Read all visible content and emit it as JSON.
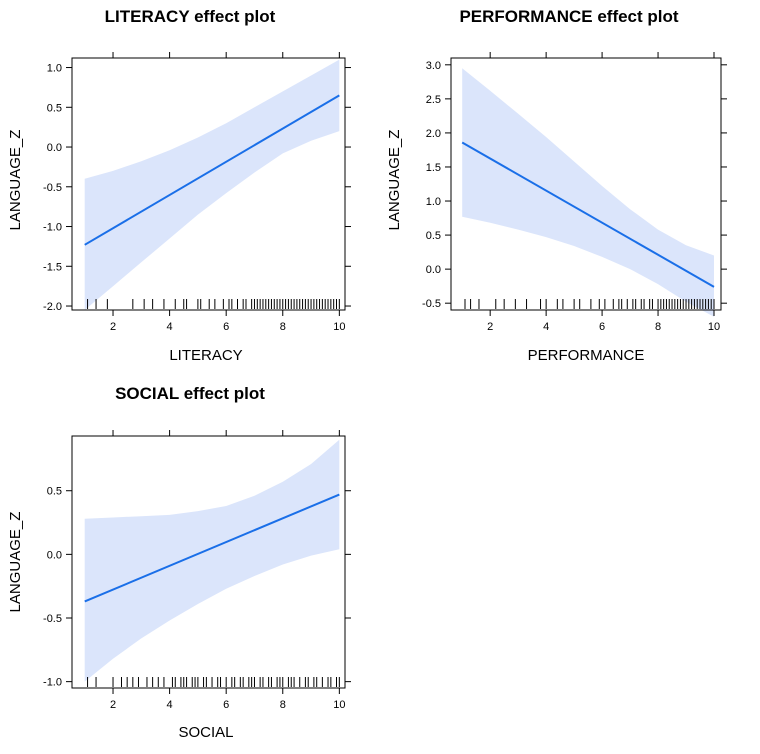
{
  "colors": {
    "fit_line": "#1a6fe8",
    "band": "#dbe5fb",
    "frame": "#000000"
  },
  "chart_data": [
    {
      "type": "line",
      "title": "LITERACY effect plot",
      "xlabel": "LITERACY",
      "ylabel": "LANGUAGE_Z",
      "xlim": [
        0.55,
        10.2
      ],
      "ylim": [
        -2.05,
        1.12
      ],
      "xticks": [
        2,
        4,
        6,
        8,
        10
      ],
      "yticks": [
        -2.0,
        -1.5,
        -1.0,
        -0.5,
        0.0,
        0.5,
        1.0
      ],
      "ytick_labels": [
        "-2.0",
        "-1.5",
        "-1.0",
        "-0.5",
        "0.0",
        "0.5",
        "1.0"
      ],
      "fit": {
        "x": [
          1,
          10
        ],
        "y": [
          -1.23,
          0.65
        ]
      },
      "band": {
        "x": [
          1,
          2,
          3,
          4,
          5,
          6,
          7,
          8,
          9,
          10
        ],
        "lower": [
          -2.05,
          -1.75,
          -1.45,
          -1.15,
          -0.85,
          -0.58,
          -0.32,
          -0.08,
          0.08,
          0.2
        ],
        "upper": [
          -0.4,
          -0.3,
          -0.18,
          -0.04,
          0.12,
          0.3,
          0.5,
          0.7,
          0.9,
          1.1
        ]
      },
      "rug": [
        1.1,
        1.4,
        1.8,
        2.7,
        3.1,
        3.4,
        3.8,
        4.2,
        4.5,
        4.6,
        5.0,
        5.1,
        5.4,
        5.6,
        5.9,
        6.1,
        6.2,
        6.4,
        6.6,
        6.7,
        6.9,
        7.0,
        7.1,
        7.2,
        7.3,
        7.4,
        7.5,
        7.6,
        7.7,
        7.8,
        7.9,
        8.0,
        8.1,
        8.2,
        8.3,
        8.4,
        8.5,
        8.6,
        8.7,
        8.8,
        8.9,
        9.0,
        9.1,
        9.2,
        9.3,
        9.4,
        9.5,
        9.6,
        9.7,
        9.8,
        9.9,
        10.0
      ]
    },
    {
      "type": "line",
      "title": "PERFORMANCE effect plot",
      "xlabel": "PERFORMANCE",
      "ylabel": "LANGUAGE_Z",
      "xlim": [
        0.6,
        10.25
      ],
      "ylim": [
        -0.6,
        3.1
      ],
      "xticks": [
        2,
        4,
        6,
        8,
        10
      ],
      "yticks": [
        -0.5,
        0.0,
        0.5,
        1.0,
        1.5,
        2.0,
        2.5,
        3.0
      ],
      "ytick_labels": [
        "-0.5",
        "0.0",
        "0.5",
        "1.0",
        "1.5",
        "2.0",
        "2.5",
        "3.0"
      ],
      "fit": {
        "x": [
          1,
          10
        ],
        "y": [
          1.86,
          -0.26
        ]
      },
      "band": {
        "x": [
          1,
          2,
          3,
          4,
          5,
          6,
          7,
          8,
          9,
          10
        ],
        "lower": [
          0.77,
          0.68,
          0.58,
          0.47,
          0.34,
          0.18,
          0.0,
          -0.22,
          -0.48,
          -0.7
        ],
        "upper": [
          2.95,
          2.62,
          2.28,
          1.94,
          1.58,
          1.22,
          0.88,
          0.58,
          0.35,
          0.2
        ]
      },
      "rug": [
        1.1,
        1.3,
        1.6,
        2.2,
        2.5,
        2.9,
        3.3,
        3.8,
        4.0,
        4.4,
        4.6,
        5.0,
        5.2,
        5.6,
        5.9,
        6.1,
        6.4,
        6.6,
        6.7,
        6.9,
        7.1,
        7.2,
        7.4,
        7.5,
        7.7,
        7.8,
        8.0,
        8.1,
        8.2,
        8.3,
        8.4,
        8.5,
        8.6,
        8.7,
        8.8,
        8.9,
        9.0,
        9.1,
        9.2,
        9.3,
        9.4,
        9.5,
        9.6,
        9.7,
        9.8,
        9.9,
        10.0
      ]
    },
    {
      "type": "line",
      "title": "SOCIAL effect plot",
      "xlabel": "SOCIAL",
      "ylabel": "LANGUAGE_Z",
      "xlim": [
        0.55,
        10.2
      ],
      "ylim": [
        -1.05,
        0.93
      ],
      "xticks": [
        2,
        4,
        6,
        8,
        10
      ],
      "yticks": [
        -1.0,
        -0.5,
        0.0,
        0.5
      ],
      "ytick_labels": [
        "-1.0",
        "-0.5",
        "0.0",
        "0.5"
      ],
      "fit": {
        "x": [
          1,
          10
        ],
        "y": [
          -0.37,
          0.47
        ]
      },
      "band": {
        "x": [
          1,
          2,
          3,
          4,
          5,
          6,
          7,
          8,
          9,
          10
        ],
        "lower": [
          -1.0,
          -0.82,
          -0.66,
          -0.52,
          -0.39,
          -0.27,
          -0.17,
          -0.08,
          -0.01,
          0.04
        ],
        "upper": [
          0.28,
          0.29,
          0.3,
          0.31,
          0.34,
          0.38,
          0.46,
          0.57,
          0.71,
          0.9
        ]
      },
      "rug": [
        1.1,
        1.4,
        2.0,
        2.3,
        2.5,
        2.7,
        2.9,
        3.2,
        3.4,
        3.6,
        3.8,
        4.1,
        4.2,
        4.4,
        4.5,
        4.6,
        4.8,
        4.9,
        5.0,
        5.2,
        5.3,
        5.5,
        5.7,
        5.8,
        6.0,
        6.2,
        6.3,
        6.5,
        6.6,
        6.8,
        6.9,
        7.0,
        7.2,
        7.3,
        7.5,
        7.6,
        7.8,
        7.9,
        8.0,
        8.2,
        8.3,
        8.4,
        8.6,
        8.8,
        8.9,
        9.1,
        9.2,
        9.4,
        9.6,
        9.7,
        9.9,
        10.0
      ]
    }
  ]
}
